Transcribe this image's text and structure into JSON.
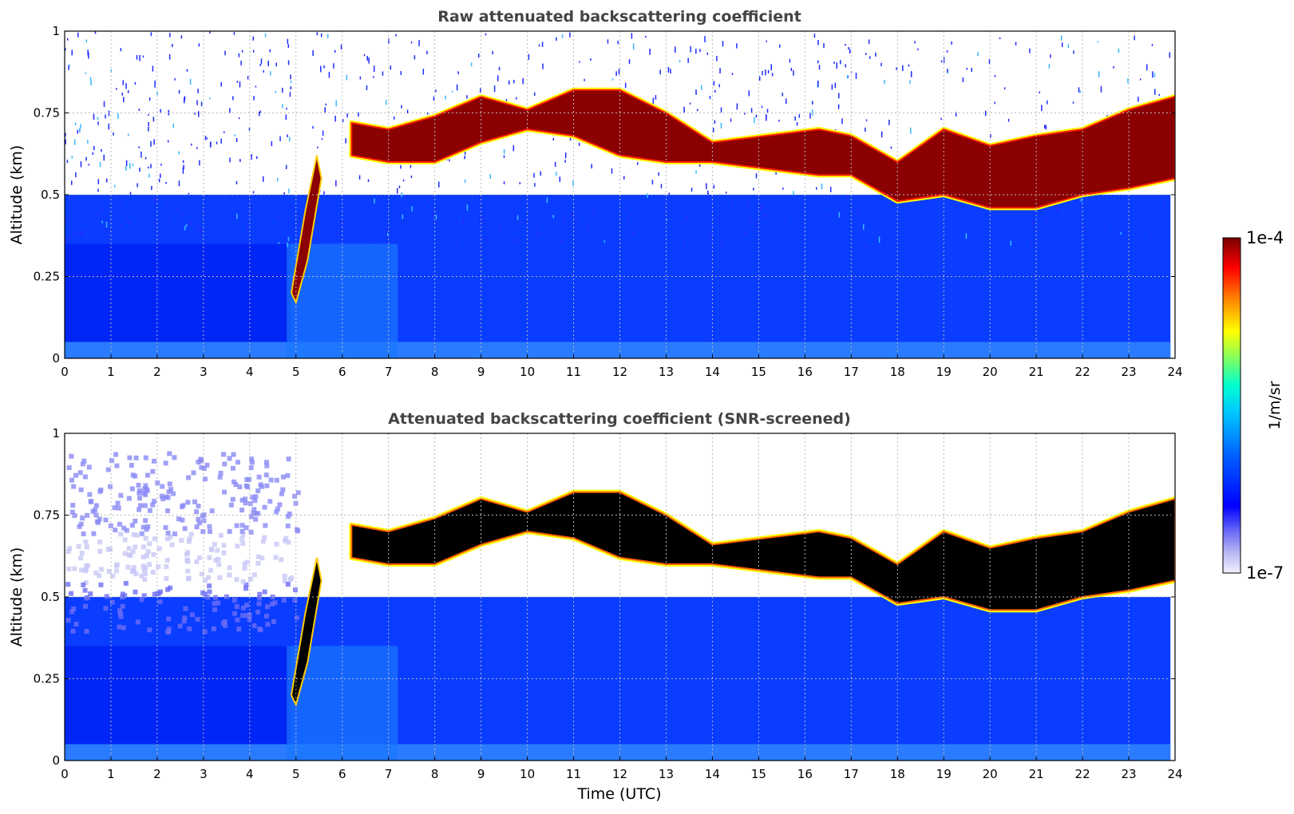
{
  "chart_data": [
    {
      "type": "heatmap",
      "title": "Raw attenuated backscattering coefficient",
      "xlabel": "",
      "ylabel": "Altitude (km)",
      "xlim": [
        0,
        24
      ],
      "ylim": [
        0,
        1
      ],
      "x_ticks": [
        "0",
        "1",
        "2",
        "3",
        "4",
        "5",
        "6",
        "7",
        "8",
        "9",
        "10",
        "11",
        "12",
        "13",
        "14",
        "15",
        "16",
        "17",
        "18",
        "19",
        "20",
        "21",
        "22",
        "23",
        "24"
      ],
      "y_ticks": [
        "0",
        "0.25",
        "0.5",
        "0.75",
        "1"
      ],
      "grid": true,
      "colormap": "jet",
      "cloud_base_km": [
        [
          6.2,
          0.62
        ],
        [
          7,
          0.6
        ],
        [
          8,
          0.6
        ],
        [
          9,
          0.66
        ],
        [
          10,
          0.7
        ],
        [
          11,
          0.68
        ],
        [
          12,
          0.62
        ],
        [
          13,
          0.6
        ],
        [
          14,
          0.6
        ],
        [
          16.3,
          0.56
        ],
        [
          17,
          0.56
        ],
        [
          18,
          0.48
        ],
        [
          19,
          0.5
        ],
        [
          20,
          0.46
        ],
        [
          21,
          0.46
        ],
        [
          22,
          0.5
        ],
        [
          23,
          0.52
        ],
        [
          24,
          0.55
        ]
      ],
      "cloud_top_km": [
        [
          6.2,
          0.72
        ],
        [
          7,
          0.7
        ],
        [
          8,
          0.74
        ],
        [
          9,
          0.8
        ],
        [
          10,
          0.76
        ],
        [
          11,
          0.82
        ],
        [
          12,
          0.82
        ],
        [
          13,
          0.75
        ],
        [
          14,
          0.66
        ],
        [
          16.3,
          0.7
        ],
        [
          17,
          0.68
        ],
        [
          18,
          0.6
        ],
        [
          19,
          0.7
        ],
        [
          20,
          0.65
        ],
        [
          21,
          0.68
        ],
        [
          22,
          0.7
        ],
        [
          23,
          0.76
        ],
        [
          24,
          0.8
        ]
      ]
    },
    {
      "type": "heatmap",
      "title": "Attenuated backscattering coefficient (SNR-screened)",
      "xlabel": "Time (UTC)",
      "ylabel": "Altitude (km)",
      "xlim": [
        0,
        24
      ],
      "ylim": [
        0,
        1
      ],
      "x_ticks": [
        "0",
        "1",
        "2",
        "3",
        "4",
        "5",
        "6",
        "7",
        "8",
        "9",
        "10",
        "11",
        "12",
        "13",
        "14",
        "15",
        "16",
        "17",
        "18",
        "19",
        "20",
        "21",
        "22",
        "23",
        "24"
      ],
      "y_ticks": [
        "0",
        "0.25",
        "0.5",
        "0.75",
        "1"
      ],
      "grid": true,
      "colormap": "jet"
    }
  ],
  "colorbar": {
    "label": "1/m/sr",
    "max_label": "1e-4",
    "min_label": "1e-7",
    "scale": "log",
    "colors": [
      "#f0f0ff",
      "#b8b8f4",
      "#6f6ff6",
      "#0000ff",
      "#0050ff",
      "#00a8ff",
      "#00ffff",
      "#80ff80",
      "#ffff00",
      "#ff8000",
      "#ff0000",
      "#800000"
    ]
  }
}
